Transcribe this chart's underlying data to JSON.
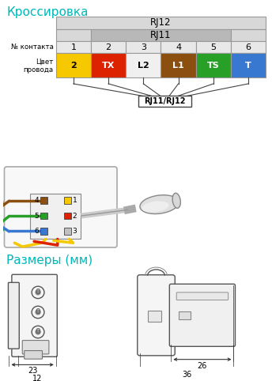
{
  "title_kross": "Кроссировка",
  "title_razm": "Размеры (мм)",
  "title_color": "#00b8b8",
  "rj12_label": "RJ12",
  "rj11_label": "RJ11",
  "rj11_rj12_label": "RJ11/RJ12",
  "contact_label": "№ контакта",
  "wire_label": "Цвет\nпровода",
  "contacts": [
    "1",
    "2",
    "3",
    "4",
    "5",
    "6"
  ],
  "wire_labels": [
    "2",
    "TX",
    "L2",
    "L1",
    "TS",
    "T"
  ],
  "wire_colors": [
    "#f5c800",
    "#dd2200",
    "#f0f0f0",
    "#8B5010",
    "#28a028",
    "#3878d0"
  ],
  "wire_text_colors": [
    "#000000",
    "#ffffff",
    "#000000",
    "#ffffff",
    "#ffffff",
    "#ffffff"
  ],
  "dim1": "23",
  "dim2": "12",
  "dim3": "36",
  "dim4": "26",
  "bg_color": "#ffffff",
  "rj12_bg": "#d8d8d8",
  "rj11_bg": "#b8b8b8",
  "contact_row_bg": "#e8e8e8",
  "table_border": "#999999",
  "line_color": "#444444"
}
